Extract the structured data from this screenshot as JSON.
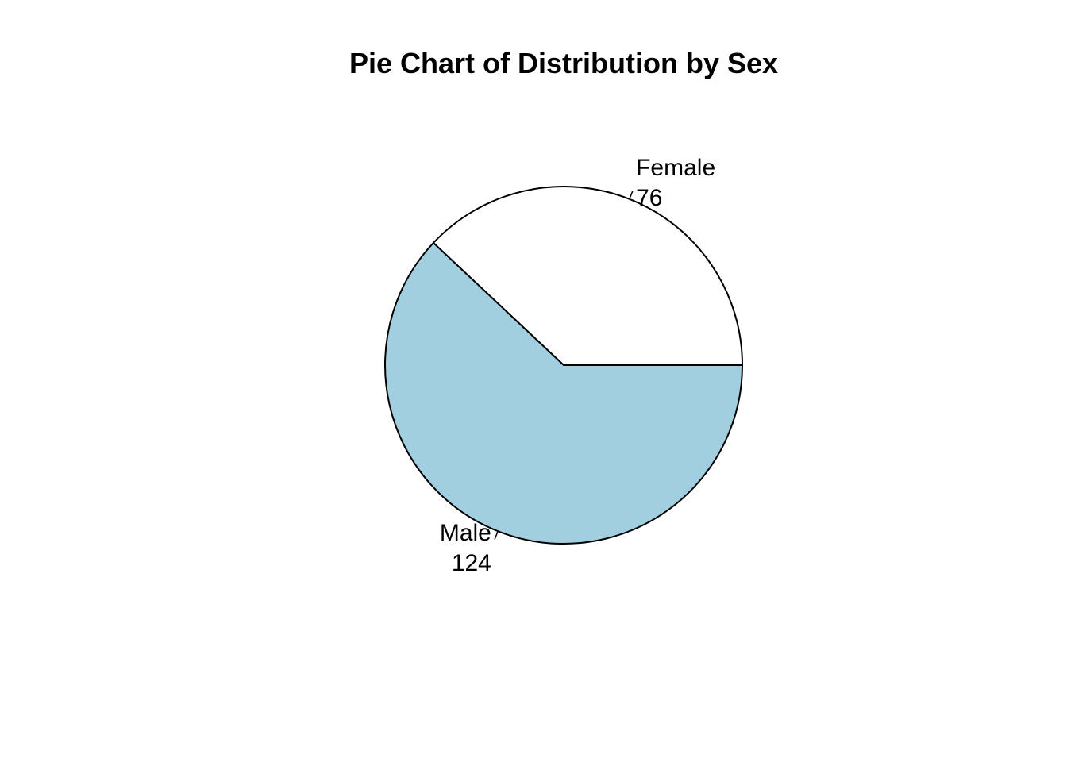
{
  "chart_data": {
    "type": "pie",
    "title": "Pie Chart of Distribution by Sex",
    "slices": [
      {
        "label": "Female",
        "value": 76,
        "value_label": "76",
        "color": "#ffffff"
      },
      {
        "label": "Male",
        "value": 124,
        "value_label": "124",
        "color": "#a2cfe0"
      }
    ],
    "start_angle_deg": 0,
    "direction": "counterclockwise",
    "outline_color": "#000000"
  }
}
